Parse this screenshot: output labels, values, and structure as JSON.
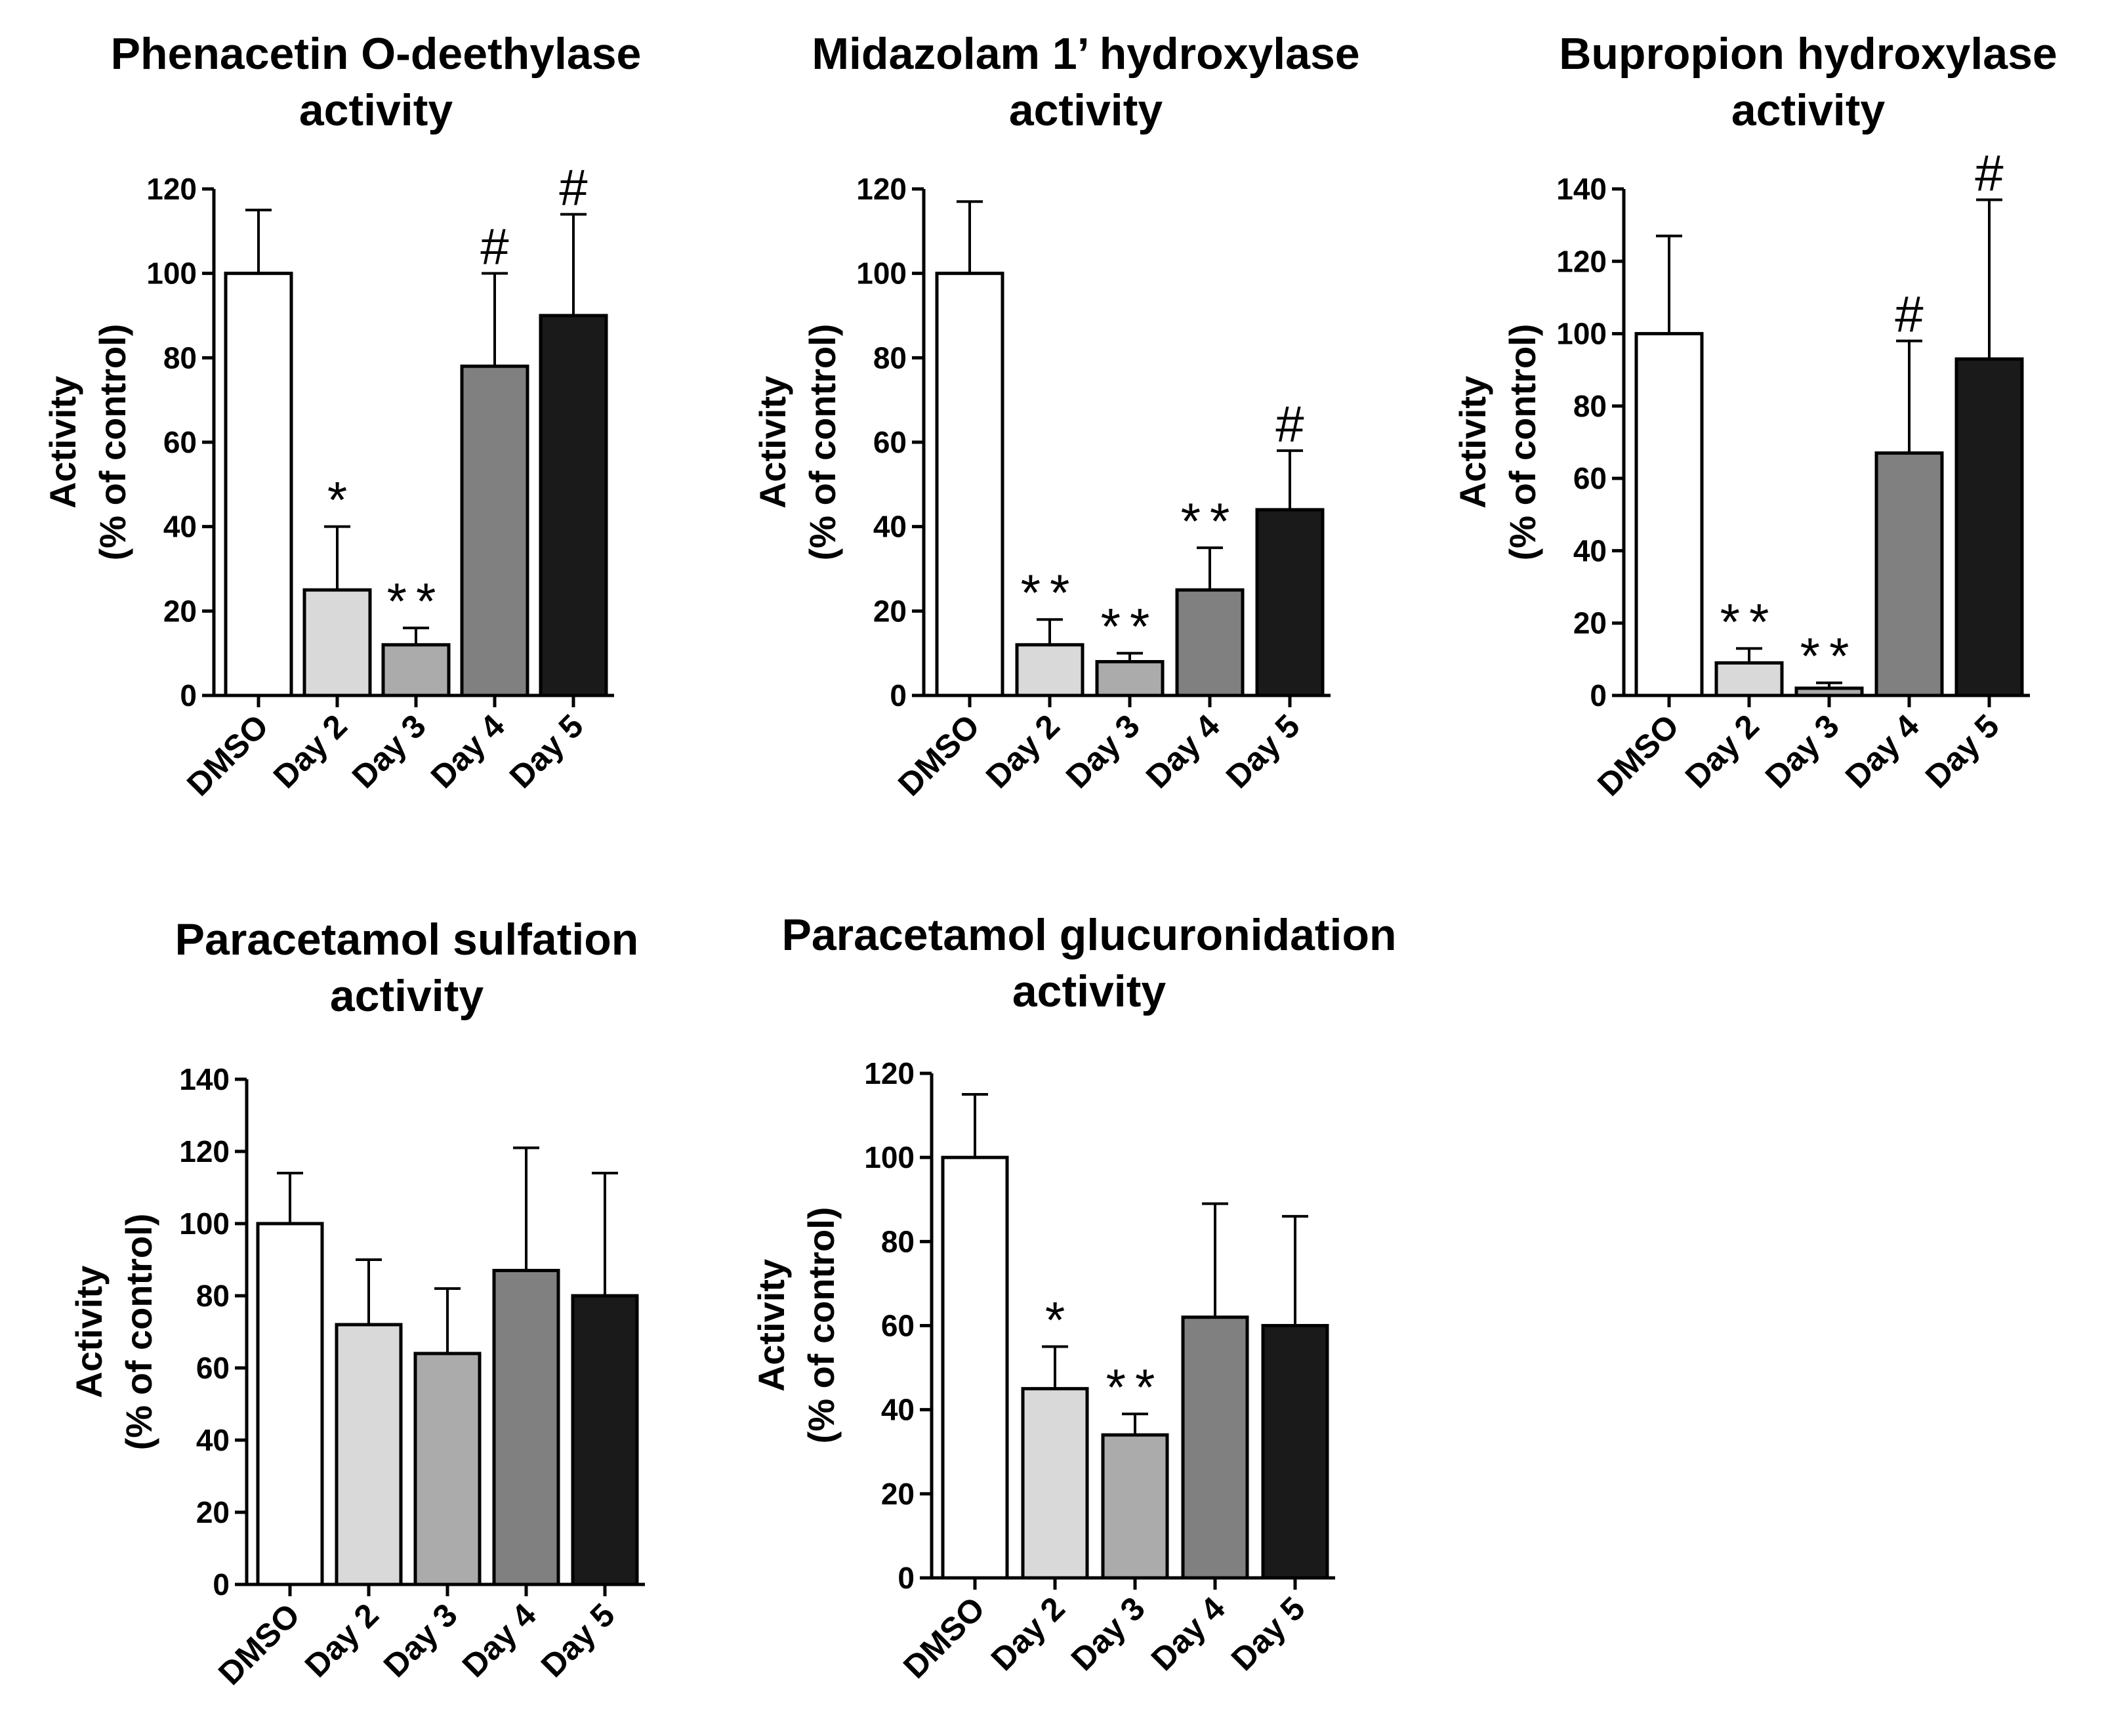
{
  "chart_data": [
    {
      "type": "bar",
      "title": [
        "Phenacetin O-deethylase",
        "activity"
      ],
      "ylabel": [
        "Activity",
        "(% of control)"
      ],
      "xlabel": "",
      "categories": [
        "DMSO",
        "Day 2",
        "Day 3",
        "Day 4",
        "Day 5"
      ],
      "values": [
        100,
        25,
        12,
        78,
        90
      ],
      "errors": [
        15,
        15,
        4,
        22,
        24
      ],
      "annotations": [
        "",
        "*",
        "**",
        "#",
        "#"
      ],
      "ylim": [
        0,
        120
      ],
      "yticks": [
        0,
        20,
        40,
        60,
        80,
        100,
        120
      ],
      "colors": [
        "#ffffff",
        "#d9d9d9",
        "#ababab",
        "#808080",
        "#1a1a1a"
      ]
    },
    {
      "type": "bar",
      "title": [
        "Midazolam 1’ hydroxylase",
        "activity"
      ],
      "ylabel": [
        "Activity",
        "(% of control)"
      ],
      "xlabel": "",
      "categories": [
        "DMSO",
        "Day 2",
        "Day 3",
        "Day 4",
        "Day 5"
      ],
      "values": [
        100,
        12,
        8,
        25,
        44
      ],
      "errors": [
        17,
        6,
        2,
        10,
        14
      ],
      "annotations": [
        "",
        "**",
        "**",
        "**",
        "#"
      ],
      "ylim": [
        0,
        120
      ],
      "yticks": [
        0,
        20,
        40,
        60,
        80,
        100,
        120
      ],
      "colors": [
        "#ffffff",
        "#d9d9d9",
        "#ababab",
        "#808080",
        "#1a1a1a"
      ]
    },
    {
      "type": "bar",
      "title": [
        "Bupropion hydroxylase",
        "activity"
      ],
      "ylabel": [
        "Activity",
        "(% of control)"
      ],
      "xlabel": "",
      "categories": [
        "DMSO",
        "Day 2",
        "Day 3",
        "Day 4",
        "Day 5"
      ],
      "values": [
        100,
        9,
        2,
        67,
        93
      ],
      "errors": [
        27,
        4,
        1.5,
        31,
        44
      ],
      "annotations": [
        "",
        "**",
        "**",
        "#",
        "#"
      ],
      "ylim": [
        0,
        140
      ],
      "yticks": [
        0,
        20,
        40,
        60,
        80,
        100,
        120,
        140
      ],
      "colors": [
        "#ffffff",
        "#d9d9d9",
        "#ababab",
        "#808080",
        "#1a1a1a"
      ]
    },
    {
      "type": "bar",
      "title": [
        "Paracetamol sulfation",
        "activity"
      ],
      "ylabel": [
        "Activity",
        "(% of control)"
      ],
      "xlabel": "",
      "categories": [
        "DMSO",
        "Day 2",
        "Day 3",
        "Day 4",
        "Day 5"
      ],
      "values": [
        100,
        72,
        64,
        87,
        80
      ],
      "errors": [
        14,
        18,
        18,
        34,
        34
      ],
      "annotations": [
        "",
        "",
        "",
        "",
        ""
      ],
      "ylim": [
        0,
        140
      ],
      "yticks": [
        0,
        20,
        40,
        60,
        80,
        100,
        120,
        140
      ],
      "colors": [
        "#ffffff",
        "#d9d9d9",
        "#ababab",
        "#808080",
        "#1a1a1a"
      ]
    },
    {
      "type": "bar",
      "title": [
        "Paracetamol glucuronidation",
        "activity"
      ],
      "ylabel": [
        "Activity",
        "(% of control)"
      ],
      "xlabel": "",
      "categories": [
        "DMSO",
        "Day 2",
        "Day 3",
        "Day 4",
        "Day 5"
      ],
      "values": [
        100,
        45,
        34,
        62,
        60
      ],
      "errors": [
        15,
        10,
        5,
        27,
        26
      ],
      "annotations": [
        "",
        "*",
        "**",
        "",
        ""
      ],
      "ylim": [
        0,
        120
      ],
      "yticks": [
        0,
        20,
        40,
        60,
        80,
        100,
        120
      ],
      "colors": [
        "#ffffff",
        "#d9d9d9",
        "#ababab",
        "#808080",
        "#1a1a1a"
      ]
    }
  ]
}
